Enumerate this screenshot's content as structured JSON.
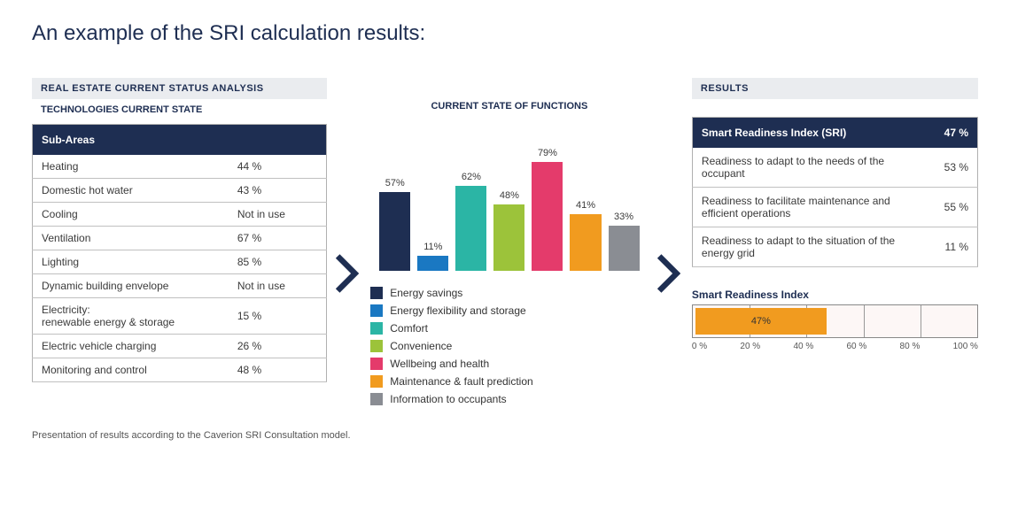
{
  "title": "An example of the SRI calculation results:",
  "left": {
    "section_header": "REAL ESTATE CURRENT STATUS ANALYSIS",
    "sub_header": "TECHNOLOGIES CURRENT STATE",
    "table_header": "Sub-Areas",
    "rows": [
      {
        "label": "Heating",
        "value": "44 %"
      },
      {
        "label": "Domestic hot water",
        "value": "43 %"
      },
      {
        "label": "Cooling",
        "value": "Not in use"
      },
      {
        "label": "Ventilation",
        "value": "67 %"
      },
      {
        "label": "Lighting",
        "value": "85 %"
      },
      {
        "label": "Dynamic building envelope",
        "value": "Not in use"
      },
      {
        "label": "Electricity:\nrenewable energy & storage",
        "value": "15 %"
      },
      {
        "label": "Electric vehicle charging",
        "value": "26 %"
      },
      {
        "label": "Monitoring and control",
        "value": "48 %"
      }
    ]
  },
  "middle": {
    "sub_header": "CURRENT STATE OF FUNCTIONS",
    "chart": {
      "type": "bar",
      "max": 90,
      "bars": [
        {
          "value": 57,
          "label": "57%",
          "color": "#1e2e52",
          "legend": "Energy savings"
        },
        {
          "value": 11,
          "label": "11%",
          "color": "#1a78c2",
          "legend": "Energy flexibility and storage"
        },
        {
          "value": 62,
          "label": "62%",
          "color": "#2bb5a5",
          "legend": "Comfort"
        },
        {
          "value": 48,
          "label": "48%",
          "color": "#9cc33a",
          "legend": "Convenience"
        },
        {
          "value": 79,
          "label": "79%",
          "color": "#e43b6b",
          "legend": "Wellbeing and health"
        },
        {
          "value": 41,
          "label": "41%",
          "color": "#f19b1f",
          "legend": "Maintenance & fault prediction"
        },
        {
          "value": 33,
          "label": "33%",
          "color": "#8a8d93",
          "legend": "Information to occupants"
        }
      ]
    }
  },
  "chevron_color": "#1e2e52",
  "right": {
    "section_header": "RESULTS",
    "header_label": "Smart Readiness Index (SRI)",
    "header_value": "47 %",
    "rows": [
      {
        "label": "Readiness to adapt to the needs of the occupant",
        "value": "53 %"
      },
      {
        "label": "Readiness to facilitate maintenance and efficient operations",
        "value": "55 %"
      },
      {
        "label": "Readiness to adapt to the situation of the energy grid",
        "value": "11 %"
      }
    ],
    "sri_bar": {
      "title": "Smart Readiness Index",
      "value": 47,
      "value_label": "47%",
      "fill_color": "#f19b1f",
      "background": "#fdf7f6",
      "ticks": [
        0,
        20,
        40,
        60,
        80,
        100
      ],
      "tick_labels": [
        "0 %",
        "20 %",
        "40 %",
        "60 %",
        "80 %",
        "100 %"
      ]
    }
  },
  "footnote": "Presentation of results according to the Caverion SRI Consultation model."
}
